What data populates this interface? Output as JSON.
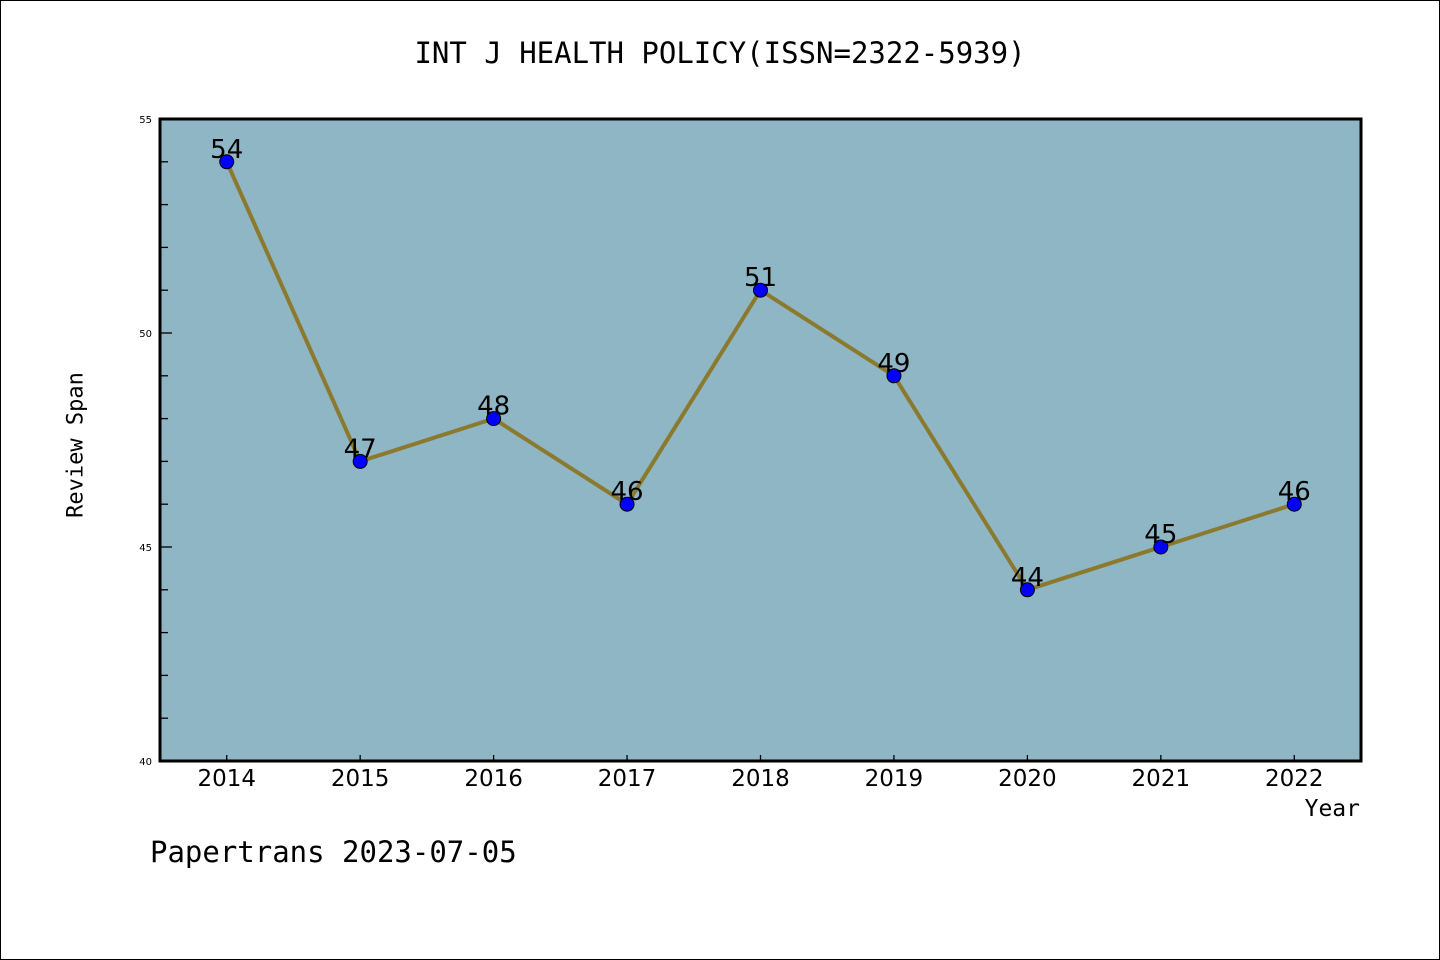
{
  "chart_data": {
    "type": "line",
    "title": "INT J HEALTH POLICY(ISSN=2322-5939)",
    "xlabel": "Year",
    "ylabel": "Review Span",
    "x": [
      2014,
      2015,
      2016,
      2017,
      2018,
      2019,
      2020,
      2021,
      2022
    ],
    "x_tick_labels": [
      "2014",
      "2015",
      "2016",
      "2017",
      "2018",
      "2019",
      "2020",
      "2021",
      "2022"
    ],
    "series": [
      {
        "name": "Review Span",
        "values": [
          54,
          47,
          48,
          46,
          51,
          49,
          44,
          45,
          46
        ]
      }
    ],
    "data_labels": [
      "54",
      "47",
      "48",
      "46",
      "51",
      "49",
      "44",
      "45",
      "46"
    ],
    "y_tick_labels": [
      "40",
      "45",
      "50",
      "55"
    ],
    "y_ticks": [
      40,
      45,
      50,
      55
    ],
    "ylim": [
      40,
      55
    ],
    "xlim": [
      2013.5,
      2022.5
    ],
    "grid": false,
    "colors": {
      "background": "#8fb6c4",
      "line": "#8b7a2e",
      "marker": "#0000ff"
    }
  },
  "footer": "Papertrans 2023-07-05"
}
